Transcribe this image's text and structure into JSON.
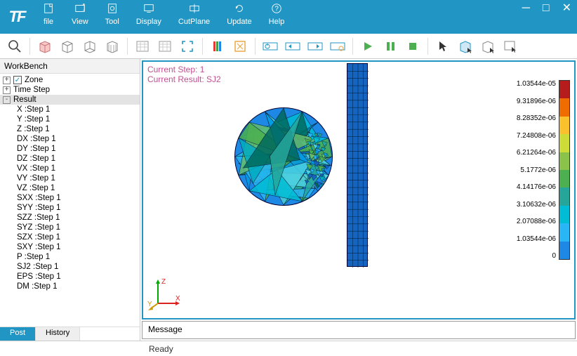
{
  "app": {
    "logo": "TF"
  },
  "menus": [
    {
      "id": "file",
      "label": "file"
    },
    {
      "id": "view",
      "label": "View"
    },
    {
      "id": "tool",
      "label": "Tool"
    },
    {
      "id": "display",
      "label": "Display"
    },
    {
      "id": "cutplane",
      "label": "CutPlane"
    },
    {
      "id": "update",
      "label": "Update"
    },
    {
      "id": "help",
      "label": "Help"
    }
  ],
  "sidebar": {
    "header": "WorkBench",
    "nodes": [
      {
        "label": "Zone",
        "expand": "+",
        "check": true,
        "level": 0
      },
      {
        "label": "Time Step",
        "expand": "+",
        "level": 0
      },
      {
        "label": "Result",
        "expand": "-",
        "level": 0,
        "selected": true
      }
    ],
    "result_children": [
      "X :Step 1",
      "Y :Step 1",
      "Z :Step 1",
      "DX :Step 1",
      "DY :Step 1",
      "DZ :Step 1",
      "VX :Step 1",
      "VY :Step 1",
      "VZ :Step 1",
      "SXX :Step 1",
      "SYY :Step 1",
      "SZZ :Step 1",
      "SYZ :Step 1",
      "SZX :Step 1",
      "SXY :Step 1",
      "P :Step 1",
      "SJ2 :Step 1",
      "EPS :Step 1",
      "DM :Step 1"
    ],
    "tabs": [
      {
        "id": "post",
        "label": "Post",
        "active": true
      },
      {
        "id": "history",
        "label": "History",
        "active": false
      }
    ]
  },
  "viewport": {
    "overlay": {
      "line1": "Current Step: 1",
      "line2": "Current Result: SJ2"
    },
    "axes": {
      "x": "X",
      "y": "Y",
      "z": "Z"
    },
    "sphere": {
      "fill": "#1e88e5",
      "mesh_stroke": "#001a33",
      "patch_colors": [
        "#00695c",
        "#26a69a",
        "#4dd0e1",
        "#29b6f6",
        "#00bcd4",
        "#66bb6a",
        "#1565c0",
        "#00acc1",
        "#4caf50",
        "#039be5"
      ]
    },
    "block": {
      "fill": "#1565c0",
      "grid_stroke": "#00264d",
      "cols": 4,
      "rows": 28
    }
  },
  "legend": {
    "colors": [
      "#b71c1c",
      "#ef6c00",
      "#fbc02d",
      "#cddc39",
      "#8bc34a",
      "#4caf50",
      "#26a69a",
      "#00bcd4",
      "#29b6f6",
      "#1e88e5"
    ],
    "labels": [
      "1.03544e-05",
      "9.31896e-06",
      "8.28352e-06",
      "7.24808e-06",
      "6.21264e-06",
      "5.1772e-06",
      "4.14176e-06",
      "3.10632e-06",
      "2.07088e-06",
      "1.03544e-06",
      "0"
    ]
  },
  "message": {
    "label": "Message"
  },
  "status": {
    "text": "Ready"
  }
}
